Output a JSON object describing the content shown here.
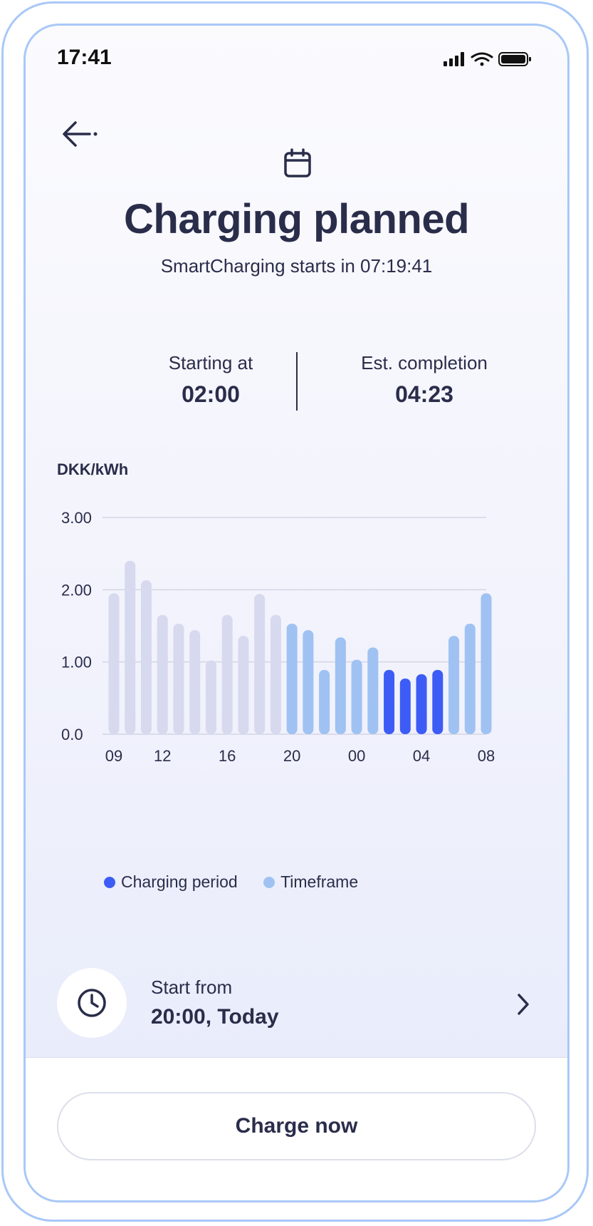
{
  "status_bar": {
    "time": "17:41"
  },
  "header": {
    "title": "Charging planned",
    "subtitle": "SmartCharging starts in 07:19:41"
  },
  "times": {
    "start_label": "Starting at",
    "start_value": "02:00",
    "end_label": "Est. completion",
    "end_value": "04:23"
  },
  "colors": {
    "inactive": "#d7d9ee",
    "timeframe": "#9fc2f2",
    "charging": "#3d5cf5",
    "gridline": "#d3d5e3"
  },
  "chart_data": {
    "type": "bar",
    "ylabel": "DKK/kWh",
    "ylim": [
      0,
      3
    ],
    "yticks": [
      "3.00",
      "2.00",
      "1.00",
      "0.0"
    ],
    "ytick_values": [
      3,
      2,
      1,
      0
    ],
    "xticks": [
      "09",
      "12",
      "16",
      "20",
      "00",
      "04",
      "08"
    ],
    "xtick_indices": [
      0,
      3,
      7,
      11,
      15,
      19,
      23
    ],
    "values": [
      1.95,
      2.4,
      2.13,
      1.65,
      1.53,
      1.44,
      1.02,
      1.65,
      1.36,
      1.94,
      1.65,
      1.53,
      1.44,
      0.89,
      1.34,
      1.03,
      1.2,
      0.89,
      0.77,
      0.83,
      0.89,
      1.36,
      1.53,
      1.95
    ],
    "states": [
      "inactive",
      "inactive",
      "inactive",
      "inactive",
      "inactive",
      "inactive",
      "inactive",
      "inactive",
      "inactive",
      "inactive",
      "inactive",
      "timeframe",
      "timeframe",
      "timeframe",
      "timeframe",
      "timeframe",
      "timeframe",
      "charging",
      "charging",
      "charging",
      "charging",
      "timeframe",
      "timeframe",
      "timeframe"
    ],
    "legend": [
      {
        "label": "Charging period",
        "state": "charging"
      },
      {
        "label": "Timeframe",
        "state": "timeframe"
      }
    ]
  },
  "start_from": {
    "label": "Start from",
    "value": "20:00, Today"
  },
  "charge_button": {
    "label": "Charge now"
  }
}
